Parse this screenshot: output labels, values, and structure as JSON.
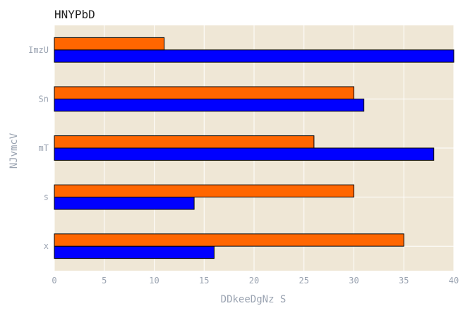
{
  "chart_data": {
    "type": "bar",
    "orientation": "horizontal",
    "title": "HNYPbD",
    "xlabel": "DDkeeDgNz S",
    "ylabel": "NJvmcV",
    "categories": [
      "x",
      "s",
      "mT",
      "Sn",
      "ImzU"
    ],
    "series": [
      {
        "color": "#0000ff",
        "values": [
          16,
          14,
          38,
          31,
          40
        ]
      },
      {
        "color": "#ff6600",
        "values": [
          35,
          30,
          26,
          30,
          11
        ]
      }
    ],
    "xlim": [
      0,
      40
    ],
    "xticks": [
      "0",
      "5",
      "10",
      "15",
      "20",
      "25",
      "30",
      "35",
      "40"
    ],
    "grid": true,
    "legend": "none",
    "colors": {
      "plot_background": "#efe7d6",
      "grid": "#ffffff",
      "tick_text": "#9aa3b1",
      "title_text": "#222222",
      "bar_edge": "#000000"
    }
  }
}
